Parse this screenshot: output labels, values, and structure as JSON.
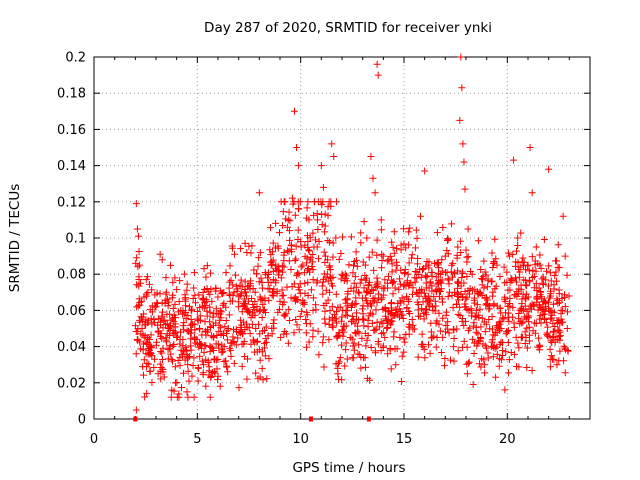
{
  "chart_data": {
    "type": "scatter",
    "title": "Day 287 of 2020, SRMTID for receiver ynki",
    "xlabel": "GPS time / hours",
    "ylabel": "SRMTID / TECUs",
    "xlim": [
      0,
      24
    ],
    "ylim": [
      0,
      0.2
    ],
    "xticks": [
      0,
      5,
      10,
      15,
      20
    ],
    "xtick_labels": [
      "0",
      "5",
      "10",
      "15",
      "20"
    ],
    "yticks": [
      0,
      0.02,
      0.04,
      0.06,
      0.08,
      0.1,
      0.12,
      0.14,
      0.16,
      0.18,
      0.2
    ],
    "ytick_labels": [
      "0",
      "0.02",
      "0.04",
      "0.06",
      "0.08",
      "0.1",
      "0.12",
      "0.14",
      "0.16",
      "0.18",
      "0.2"
    ],
    "grid": true,
    "series": [
      {
        "name": "SRMTID",
        "color": "#ff0000",
        "marker": "plus",
        "points": [
          [
            2.05,
            0.119
          ],
          [
            2.1,
            0.105
          ],
          [
            2.15,
            0.101
          ],
          [
            2.2,
            0.085
          ],
          [
            2.25,
            0.075
          ],
          [
            2.3,
            0.065
          ],
          [
            2.4,
            0.058
          ],
          [
            2.5,
            0.052
          ],
          [
            2.6,
            0.045
          ],
          [
            2.7,
            0.04
          ],
          [
            2.8,
            0.035
          ],
          [
            2.9,
            0.055
          ],
          [
            3.0,
            0.062
          ],
          [
            3.1,
            0.048
          ],
          [
            3.2,
            0.091
          ],
          [
            3.3,
            0.088
          ],
          [
            3.5,
            0.07
          ],
          [
            3.6,
            0.05
          ],
          [
            3.8,
            0.032
          ],
          [
            4.0,
            0.045
          ],
          [
            4.2,
            0.06
          ],
          [
            4.4,
            0.038
          ],
          [
            4.5,
            0.015
          ],
          [
            4.7,
            0.055
          ],
          [
            4.9,
            0.042
          ],
          [
            5.1,
            0.05
          ],
          [
            5.3,
            0.03
          ],
          [
            5.5,
            0.048
          ],
          [
            5.7,
            0.065
          ],
          [
            5.9,
            0.072
          ],
          [
            6.1,
            0.058
          ],
          [
            6.3,
            0.04
          ],
          [
            6.5,
            0.05
          ],
          [
            6.8,
            0.091
          ],
          [
            7.0,
            0.062
          ],
          [
            7.2,
            0.047
          ],
          [
            7.4,
            0.022
          ],
          [
            7.6,
            0.056
          ],
          [
            7.8,
            0.07
          ],
          [
            8.0,
            0.125
          ],
          [
            8.2,
            0.06
          ],
          [
            8.4,
            0.078
          ],
          [
            8.6,
            0.05
          ],
          [
            8.8,
            0.085
          ],
          [
            9.0,
            0.065
          ],
          [
            9.2,
            0.092
          ],
          [
            9.4,
            0.11
          ],
          [
            9.6,
            0.122
          ],
          [
            9.7,
            0.17
          ],
          [
            9.8,
            0.15
          ],
          [
            9.9,
            0.14
          ],
          [
            10.0,
            0.098
          ],
          [
            10.1,
            0.085
          ],
          [
            10.2,
            0.075
          ],
          [
            10.4,
            0.11
          ],
          [
            10.6,
            0.06
          ],
          [
            10.8,
            0.095
          ],
          [
            11.0,
            0.14
          ],
          [
            11.1,
            0.128
          ],
          [
            11.2,
            0.09
          ],
          [
            11.4,
            0.07
          ],
          [
            11.5,
            0.152
          ],
          [
            11.6,
            0.145
          ],
          [
            11.7,
            0.1
          ],
          [
            11.8,
            0.025
          ],
          [
            12.0,
            0.08
          ],
          [
            12.2,
            0.06
          ],
          [
            12.4,
            0.045
          ],
          [
            12.6,
            0.038
          ],
          [
            12.8,
            0.07
          ],
          [
            13.0,
            0.055
          ],
          [
            13.2,
            0.1
          ],
          [
            13.4,
            0.145
          ],
          [
            13.5,
            0.133
          ],
          [
            13.6,
            0.125
          ],
          [
            13.7,
            0.196
          ],
          [
            13.75,
            0.19
          ],
          [
            13.9,
            0.11
          ],
          [
            14.0,
            0.09
          ],
          [
            14.2,
            0.075
          ],
          [
            14.4,
            0.06
          ],
          [
            14.6,
            0.03
          ],
          [
            14.8,
            0.045
          ],
          [
            15.0,
            0.065
          ],
          [
            15.2,
            0.08
          ],
          [
            15.4,
            0.055
          ],
          [
            15.6,
            0.07
          ],
          [
            15.8,
            0.112
          ],
          [
            16.0,
            0.137
          ],
          [
            16.2,
            0.085
          ],
          [
            16.4,
            0.06
          ],
          [
            16.6,
            0.045
          ],
          [
            16.8,
            0.075
          ],
          [
            17.0,
            0.09
          ],
          [
            17.2,
            0.07
          ],
          [
            17.4,
            0.04
          ],
          [
            17.6,
            0.095
          ],
          [
            17.7,
            0.165
          ],
          [
            17.75,
            0.2
          ],
          [
            17.8,
            0.183
          ],
          [
            17.85,
            0.152
          ],
          [
            17.9,
            0.142
          ],
          [
            17.95,
            0.127
          ],
          [
            18.1,
            0.105
          ],
          [
            18.3,
            0.08
          ],
          [
            18.5,
            0.06
          ],
          [
            18.7,
            0.045
          ],
          [
            18.9,
            0.03
          ],
          [
            19.1,
            0.055
          ],
          [
            19.3,
            0.07
          ],
          [
            19.5,
            0.085
          ],
          [
            19.7,
            0.05
          ],
          [
            19.9,
            0.065
          ],
          [
            20.1,
            0.09
          ],
          [
            20.3,
            0.143
          ],
          [
            20.5,
            0.1
          ],
          [
            20.7,
            0.06
          ],
          [
            20.9,
            0.045
          ],
          [
            21.0,
            0.085
          ],
          [
            21.1,
            0.15
          ],
          [
            21.2,
            0.125
          ],
          [
            21.4,
            0.095
          ],
          [
            21.6,
            0.07
          ],
          [
            21.8,
            0.055
          ],
          [
            22.0,
            0.138
          ],
          [
            22.2,
            0.045
          ],
          [
            22.4,
            0.03
          ],
          [
            22.6,
            0.06
          ],
          [
            22.7,
            0.112
          ],
          [
            22.8,
            0.09
          ],
          [
            22.9,
            0.05
          ]
        ],
        "scatter_hours": [
          2.0,
          23.0
        ]
      }
    ],
    "zero_markers_x": [
      2.0,
      10.5,
      13.3
    ]
  }
}
